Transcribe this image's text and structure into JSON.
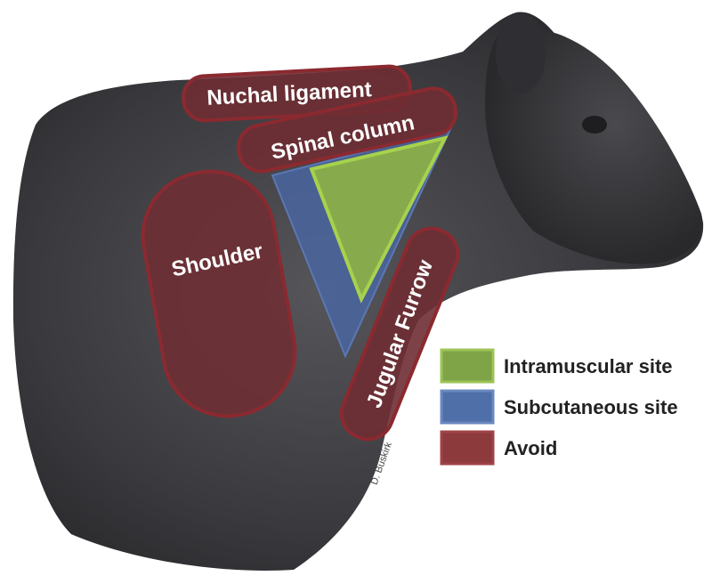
{
  "labels": {
    "nuchal_ligament": "Nuchal ligament",
    "spinal_column": "Spinal column",
    "shoulder": "Shoulder",
    "jugular_furrow": "Jugular Furrow"
  },
  "legend": [
    {
      "label": "Intramuscular site",
      "color": "#7ea447"
    },
    {
      "label": "Subcutaneous site",
      "color": "#4f6fa8"
    },
    {
      "label": "Avoid",
      "color": "#8c3a3c"
    }
  ],
  "credit": "D. Buskirk",
  "colors": {
    "avoid_fill": "#6e2e33",
    "avoid_stroke": "#8a2a30",
    "subcutaneous": "#4a66a4",
    "intramuscular": "#8fb542",
    "animal_body": "#3a3a3d"
  }
}
